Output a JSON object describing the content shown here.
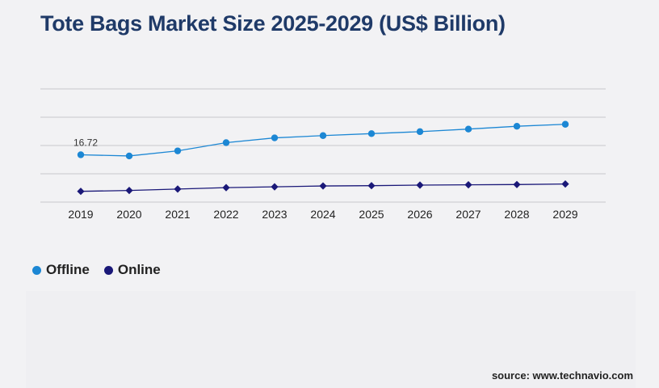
{
  "title": "Tote Bags Market Size 2025-2029 (US$ Billion)",
  "source": "source: www.technavio.com",
  "colors": {
    "offline": "#1c87d4",
    "online": "#1a1878",
    "grid": "#c8c8cc",
    "title": "#1f3a68"
  },
  "chart_data": {
    "type": "line",
    "title": "Tote Bags Market Size 2025-2029 (US$ Billion)",
    "x": [
      "2019",
      "2020",
      "2021",
      "2022",
      "2023",
      "2024",
      "2025",
      "2026",
      "2027",
      "2028",
      "2029"
    ],
    "ylim": [
      0,
      40
    ],
    "grid": true,
    "legend_placement": "bottom-left",
    "series": [
      {
        "name": "Offline",
        "values": [
          16.72,
          16.3,
          18.1,
          21.0,
          22.7,
          23.5,
          24.2,
          24.9,
          25.8,
          26.8,
          27.5
        ]
      },
      {
        "name": "Online",
        "values": [
          3.8,
          4.1,
          4.6,
          5.1,
          5.4,
          5.7,
          5.8,
          6.0,
          6.1,
          6.2,
          6.4
        ]
      }
    ],
    "data_labels": [
      {
        "series": "Offline",
        "index": 0,
        "text": "16.72"
      }
    ]
  }
}
